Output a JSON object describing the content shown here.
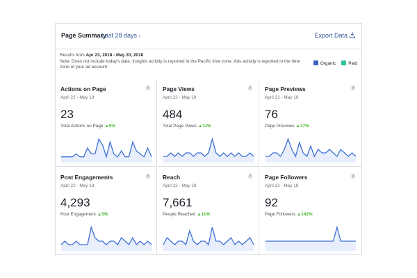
{
  "header": {
    "title": "Page Summary",
    "range_label": "Last 28 days",
    "export_label": "Export Data"
  },
  "info": {
    "results_prefix": "Results from",
    "results_range": "Apr 23, 2018 - May 20, 2018",
    "note": "Note: Does not include today's data. Insights activity is reported in the Pacific time zone. Ads activity is reported in the time zone of your ad account."
  },
  "legend": {
    "items": [
      {
        "label": "Organic",
        "color": "#3b5fc0"
      },
      {
        "label": "Paid",
        "color": "#2ec4a0"
      }
    ]
  },
  "colors": {
    "line": "#3b6fd4",
    "fill": "#e8eefc",
    "positive": "#42b72a",
    "link": "#365899"
  },
  "cards": [
    {
      "title": "Actions on Page",
      "date": "April 22 - May 19",
      "value": "23",
      "sub_label": "Total Actions on Page",
      "change": "5%",
      "series": [
        1,
        1,
        1,
        1,
        2,
        1,
        1,
        4,
        2,
        2,
        7,
        5,
        1,
        6,
        2,
        1,
        3,
        1,
        1,
        6,
        3,
        2,
        1,
        4,
        1
      ]
    },
    {
      "title": "Page Views",
      "date": "April 22 - May 19",
      "value": "484",
      "sub_label": "Total Page Views",
      "change": "11%",
      "series": [
        1,
        1,
        2,
        1,
        2,
        1,
        2,
        2,
        1,
        2,
        2,
        1,
        2,
        6,
        2,
        1,
        2,
        1,
        2,
        1,
        2,
        1,
        1,
        2,
        1
      ]
    },
    {
      "title": "Page Previews",
      "date": "April 22 - May 19",
      "value": "76",
      "sub_label": "Page Previews",
      "change": "17%",
      "series": [
        1,
        1,
        2,
        2,
        1,
        3,
        6,
        3,
        1,
        5,
        2,
        1,
        4,
        1,
        3,
        2,
        2,
        3,
        2,
        1,
        3,
        2,
        1,
        2,
        1
      ]
    },
    {
      "title": "Post Engagements",
      "date": "April 22 - May 19",
      "value": "4,293",
      "sub_label": "Post Engagement",
      "change": "5%",
      "series": [
        1,
        2,
        1,
        1,
        2,
        1,
        1,
        1,
        6,
        3,
        2,
        2,
        1,
        2,
        2,
        1,
        3,
        2,
        1,
        3,
        1,
        2,
        1,
        2,
        1
      ]
    },
    {
      "title": "Reach",
      "date": "April 22 - May 19",
      "value": "7,661",
      "sub_label": "People Reached",
      "change": "11%",
      "series": [
        1,
        3,
        2,
        1,
        2,
        2,
        1,
        5,
        2,
        1,
        2,
        2,
        1,
        6,
        2,
        2,
        1,
        2,
        3,
        1,
        2,
        1,
        2,
        3,
        1
      ]
    },
    {
      "title": "Page Followers",
      "date": "April 22 - May 19",
      "value": "92",
      "sub_label": "Page Followers",
      "change": "142%",
      "series": [
        1,
        1,
        1,
        1,
        1,
        1,
        1,
        1,
        1,
        1,
        1,
        1,
        1,
        1,
        1,
        1,
        1,
        1,
        1,
        3,
        1,
        1,
        1,
        1,
        1
      ]
    }
  ]
}
